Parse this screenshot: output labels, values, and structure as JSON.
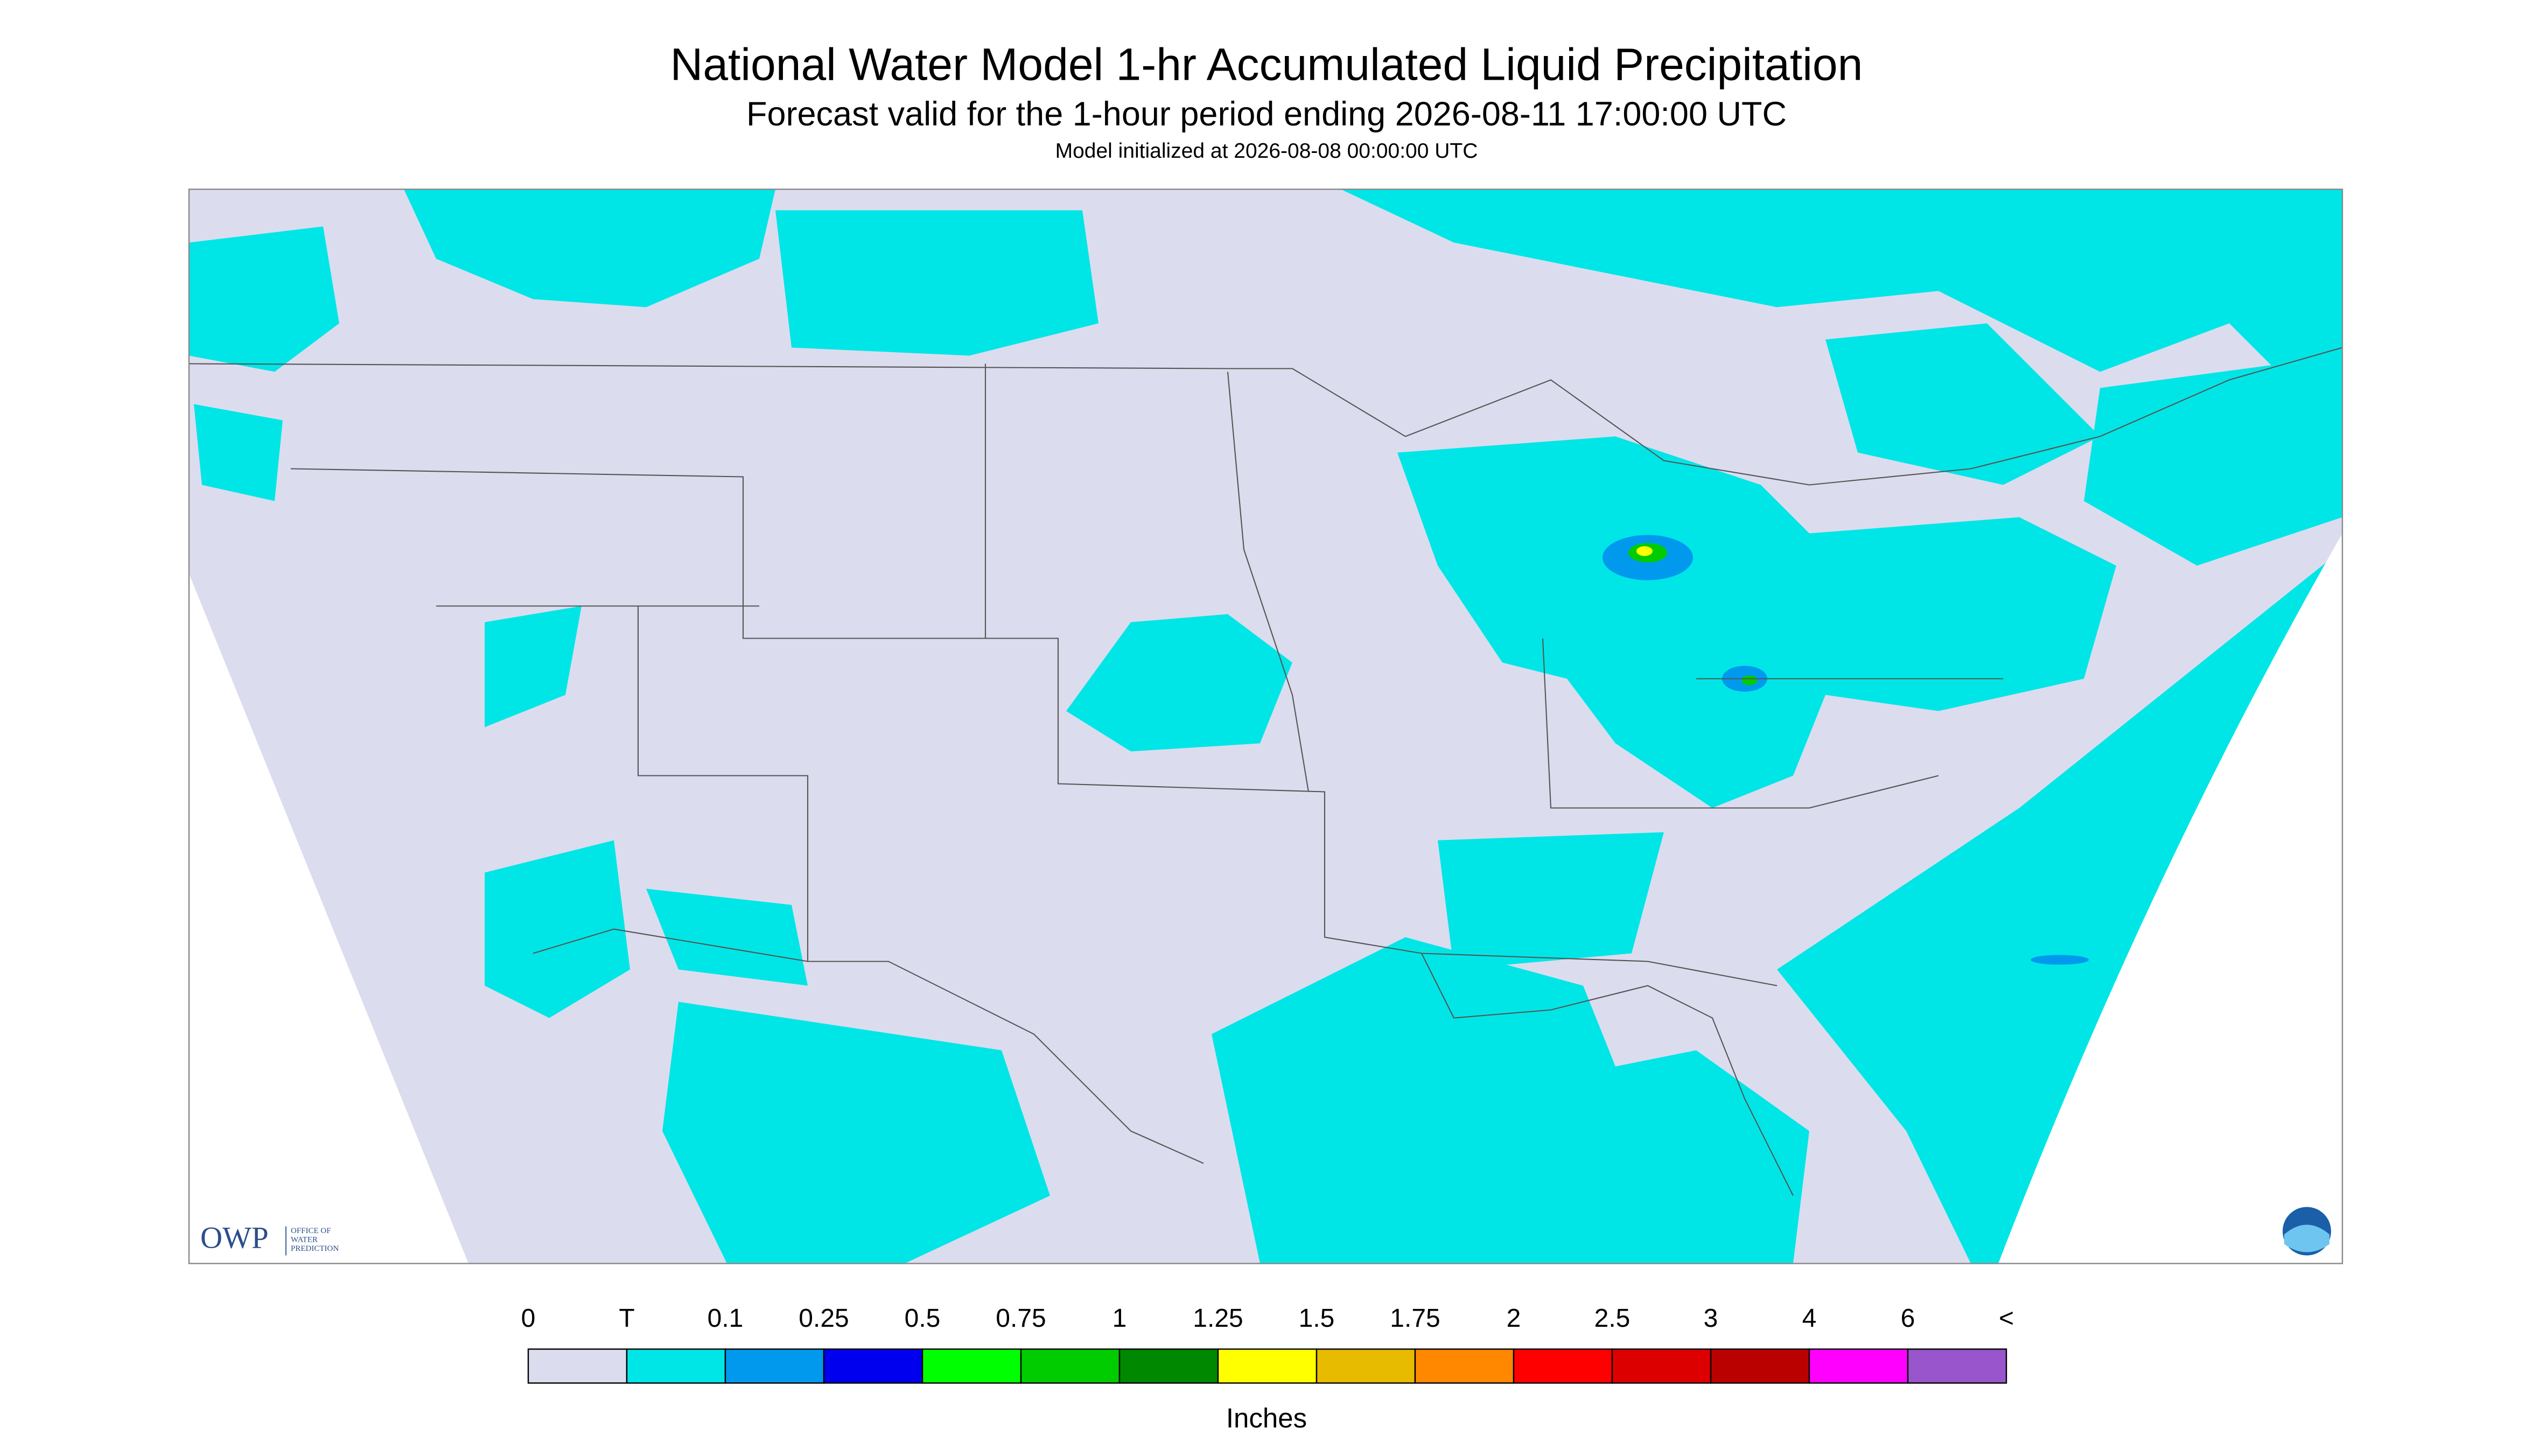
{
  "header": {
    "title": "National Water Model 1-hr Accumulated Liquid Precipitation",
    "subtitle": "Forecast valid for the 1-hour period ending 2026-08-11 17:00:00 UTC",
    "note": "Model initialized at 2026-08-08 00:00:00 UTC"
  },
  "logo": {
    "short": "OWP",
    "lines": [
      "OFFICE OF",
      "WATER",
      "PREDICTION"
    ]
  },
  "legend": {
    "unit": "Inches",
    "labels": [
      "0",
      "T",
      "0.1",
      "0.25",
      "0.5",
      "0.75",
      "1",
      "1.25",
      "1.5",
      "1.75",
      "2",
      "2.5",
      "3",
      "4",
      "6",
      "<"
    ],
    "colors": [
      "#dcdcef",
      "#00e6e6",
      "#0099ee",
      "#0000ee",
      "#00ff00",
      "#00cc00",
      "#008800",
      "#ffff00",
      "#e6bb00",
      "#ff8800",
      "#ff0000",
      "#dd0000",
      "#bb0000",
      "#ff00ff",
      "#9955cc"
    ]
  }
}
